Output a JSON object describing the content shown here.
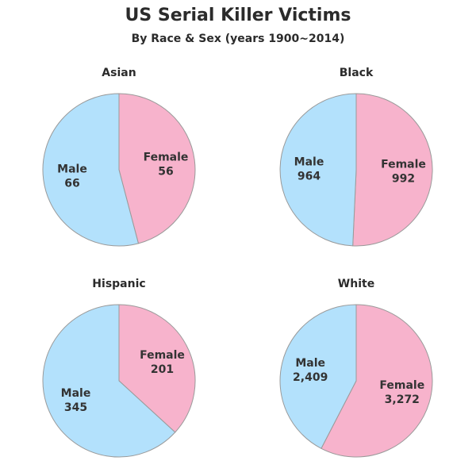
{
  "title": "US Serial Killer Victims",
  "subtitle": "By Race & Sex (years 1900~2014)",
  "colors": {
    "male": "#b3e1fc",
    "female": "#f7b3cc",
    "outline": "#9a9a9a",
    "text": "#2b2b2b"
  },
  "chart_data": [
    {
      "type": "pie",
      "title": "Asian",
      "slices": [
        {
          "label": "Female",
          "value": 56,
          "value_label": "56"
        },
        {
          "label": "Male",
          "value": 66,
          "value_label": "66"
        }
      ]
    },
    {
      "type": "pie",
      "title": "Black",
      "slices": [
        {
          "label": "Female",
          "value": 992,
          "value_label": "992"
        },
        {
          "label": "Male",
          "value": 964,
          "value_label": "964"
        }
      ]
    },
    {
      "type": "pie",
      "title": "Hispanic",
      "slices": [
        {
          "label": "Female",
          "value": 201,
          "value_label": "201"
        },
        {
          "label": "Male",
          "value": 345,
          "value_label": "345"
        }
      ]
    },
    {
      "type": "pie",
      "title": "White",
      "slices": [
        {
          "label": "Female",
          "value": 3272,
          "value_label": "3,272"
        },
        {
          "label": "Male",
          "value": 2409,
          "value_label": "2,409"
        }
      ]
    }
  ]
}
